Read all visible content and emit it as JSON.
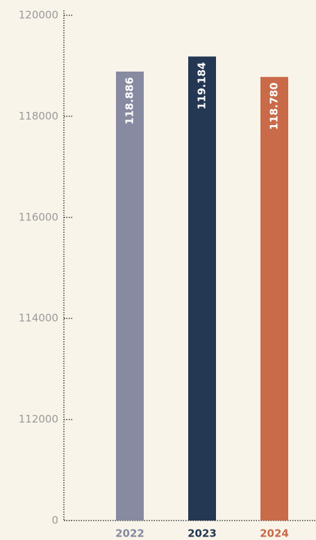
{
  "chart_data": {
    "type": "bar",
    "categories": [
      "2022",
      "2023",
      "2024"
    ],
    "values": [
      118886,
      119184,
      118780
    ],
    "value_labels": [
      "118.886",
      "119.184",
      "118.780"
    ],
    "colors": [
      "#878aa0",
      "#243753",
      "#c96a48"
    ],
    "ylim": [
      0,
      120000
    ],
    "yticks": [
      0,
      112000,
      114000,
      116000,
      118000,
      120000
    ],
    "axis_break": true
  }
}
